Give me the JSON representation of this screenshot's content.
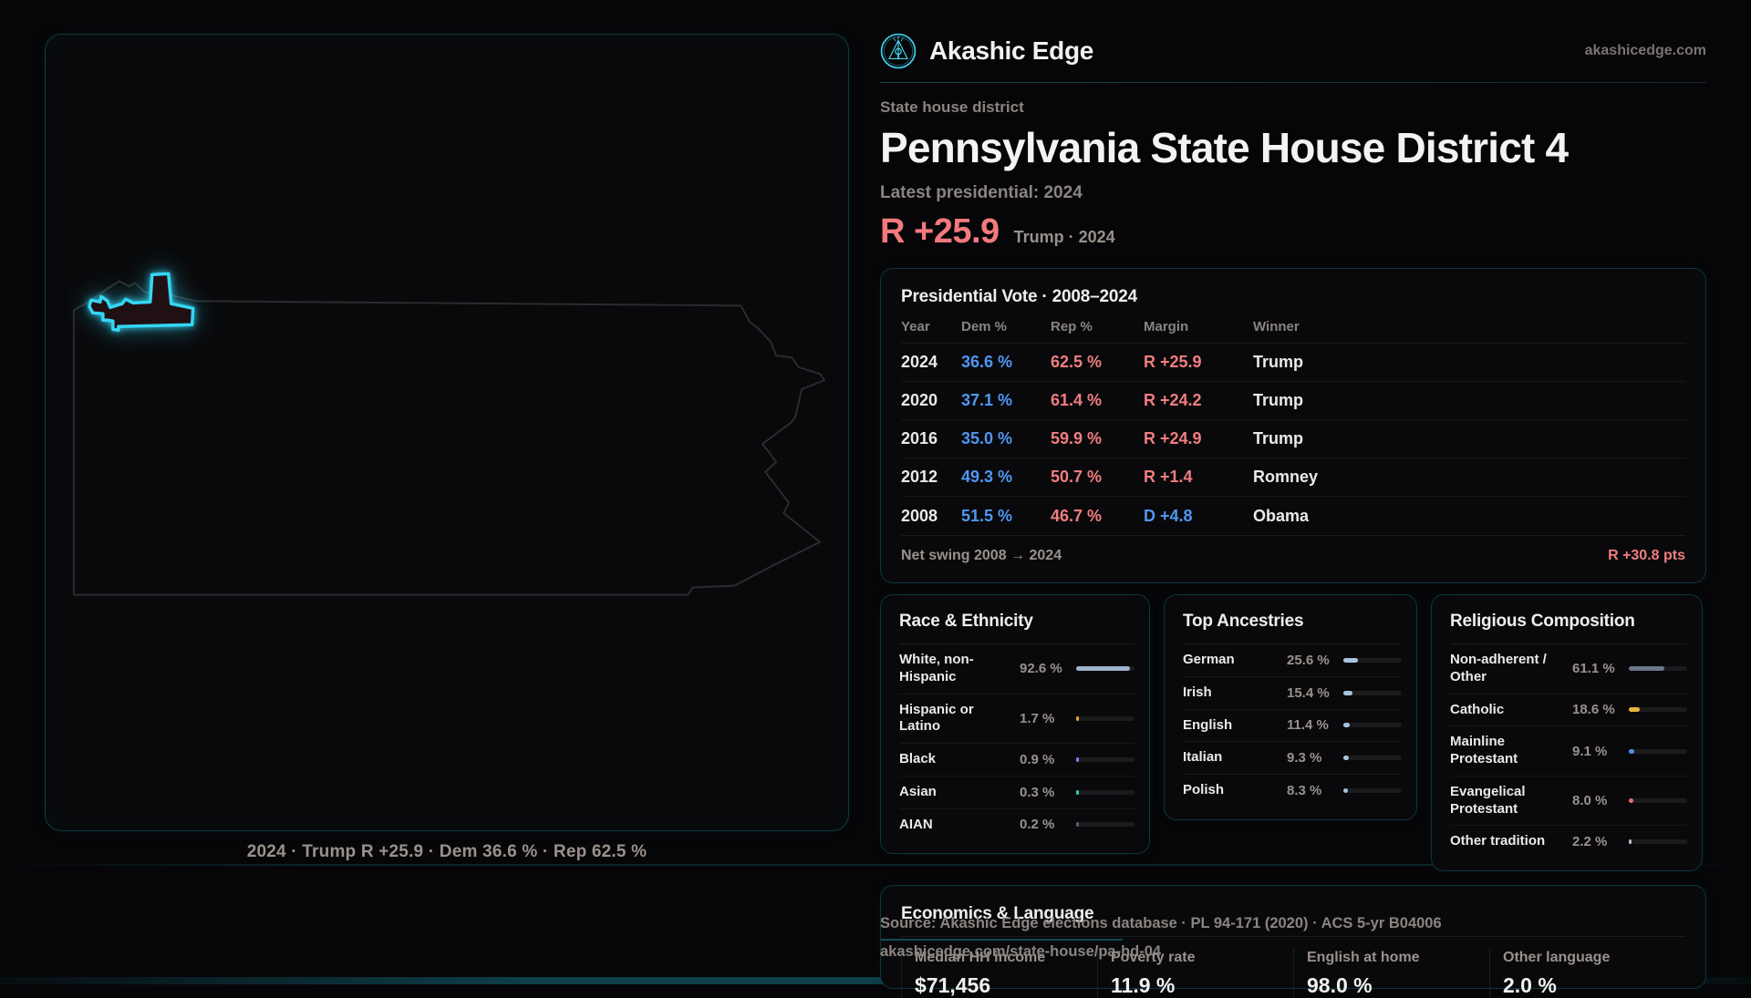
{
  "brand": {
    "name": "Akashic Edge",
    "domain": "akashicedge.com",
    "logo_icon": "akashic-edge-emblem"
  },
  "colors": {
    "accent_cyan": "#35d6f5",
    "rep_red": "#f17d80",
    "dem_blue": "#5097f2",
    "gold": "#e9b43c",
    "card_border_teal": "#0d3440",
    "muted_text": "#9b918c"
  },
  "page": {
    "kicker": "State house district",
    "title": "Pennsylvania State House District 4",
    "subtitle": "Latest presidential: 2024",
    "headline_margin": "R +25.9",
    "headline_context": "Trump · 2024"
  },
  "map": {
    "caption": "2024 · Trump R +25.9 · Dem 36.6 % · Rep 62.5 %"
  },
  "presidential_vote": {
    "title": "Presidential Vote · 2008–2024",
    "columns": [
      "Year",
      "Dem %",
      "Rep %",
      "Margin",
      "Winner"
    ],
    "rows": [
      {
        "year": "2024",
        "dem": "36.6 %",
        "rep": "62.5 %",
        "margin": "R +25.9",
        "margin_party": "R",
        "winner": "Trump"
      },
      {
        "year": "2020",
        "dem": "37.1 %",
        "rep": "61.4 %",
        "margin": "R +24.2",
        "margin_party": "R",
        "winner": "Trump"
      },
      {
        "year": "2016",
        "dem": "35.0 %",
        "rep": "59.9 %",
        "margin": "R +24.9",
        "margin_party": "R",
        "winner": "Trump"
      },
      {
        "year": "2012",
        "dem": "49.3 %",
        "rep": "50.7 %",
        "margin": "R +1.4",
        "margin_party": "R",
        "winner": "Romney"
      },
      {
        "year": "2008",
        "dem": "51.5 %",
        "rep": "46.7 %",
        "margin": "D +4.8",
        "margin_party": "D",
        "winner": "Obama"
      }
    ],
    "net_swing_label": "Net swing 2008 → 2024",
    "net_swing_value": "R +30.8 pts"
  },
  "race_ethnicity": {
    "title": "Race & Ethnicity",
    "rows": [
      {
        "label": "White, non-Hispanic",
        "value": "92.6 %",
        "pct": 92.6,
        "color": "#9db4cc"
      },
      {
        "label": "Hispanic or Latino",
        "value": "1.7 %",
        "pct": 1.7,
        "color": "#e8a13c"
      },
      {
        "label": "Black",
        "value": "0.9 %",
        "pct": 0.9,
        "color": "#8b7cf0"
      },
      {
        "label": "Asian",
        "value": "0.3 %",
        "pct": 0.3,
        "color": "#35c9a3"
      },
      {
        "label": "AIAN",
        "value": "0.2 %",
        "pct": 0.2,
        "color": "#5a5f66"
      }
    ]
  },
  "ancestries": {
    "title": "Top Ancestries",
    "rows": [
      {
        "label": "German",
        "value": "25.6 %",
        "pct": 25.6,
        "color": "#a9c3dc"
      },
      {
        "label": "Irish",
        "value": "15.4 %",
        "pct": 15.4,
        "color": "#a9c3dc"
      },
      {
        "label": "English",
        "value": "11.4 %",
        "pct": 11.4,
        "color": "#a9c3dc"
      },
      {
        "label": "Italian",
        "value": "9.3 %",
        "pct": 9.3,
        "color": "#a9c3dc"
      },
      {
        "label": "Polish",
        "value": "8.3 %",
        "pct": 8.3,
        "color": "#a9c3dc"
      }
    ]
  },
  "religion": {
    "title": "Religious Composition",
    "rows": [
      {
        "label": "Non-adherent / Other",
        "value": "61.1 %",
        "pct": 61.1,
        "color": "#6b7889"
      },
      {
        "label": "Catholic",
        "value": "18.6 %",
        "pct": 18.6,
        "color": "#e9b43c"
      },
      {
        "label": "Mainline Protestant",
        "value": "9.1 %",
        "pct": 9.1,
        "color": "#4f8fe8"
      },
      {
        "label": "Evangelical Protestant",
        "value": "8.0 %",
        "pct": 8.0,
        "color": "#e57373"
      },
      {
        "label": "Other tradition",
        "value": "2.2 %",
        "pct": 2.2,
        "color": "#b9bdc4"
      }
    ]
  },
  "economics": {
    "title": "Economics & Language",
    "stats": [
      {
        "label": "Median HH income",
        "value": "$71,456"
      },
      {
        "label": "Poverty rate",
        "value": "11.9 %"
      },
      {
        "label": "English at home",
        "value": "98.0 %"
      },
      {
        "label": "Other language",
        "value": "2.0 %"
      }
    ]
  },
  "source": {
    "line1": "Source: Akashic Edge elections database · PL 94-171 (2020) · ACS 5-yr B04006",
    "line2": "akashicedge.com/state-house/pa-hd-04"
  }
}
